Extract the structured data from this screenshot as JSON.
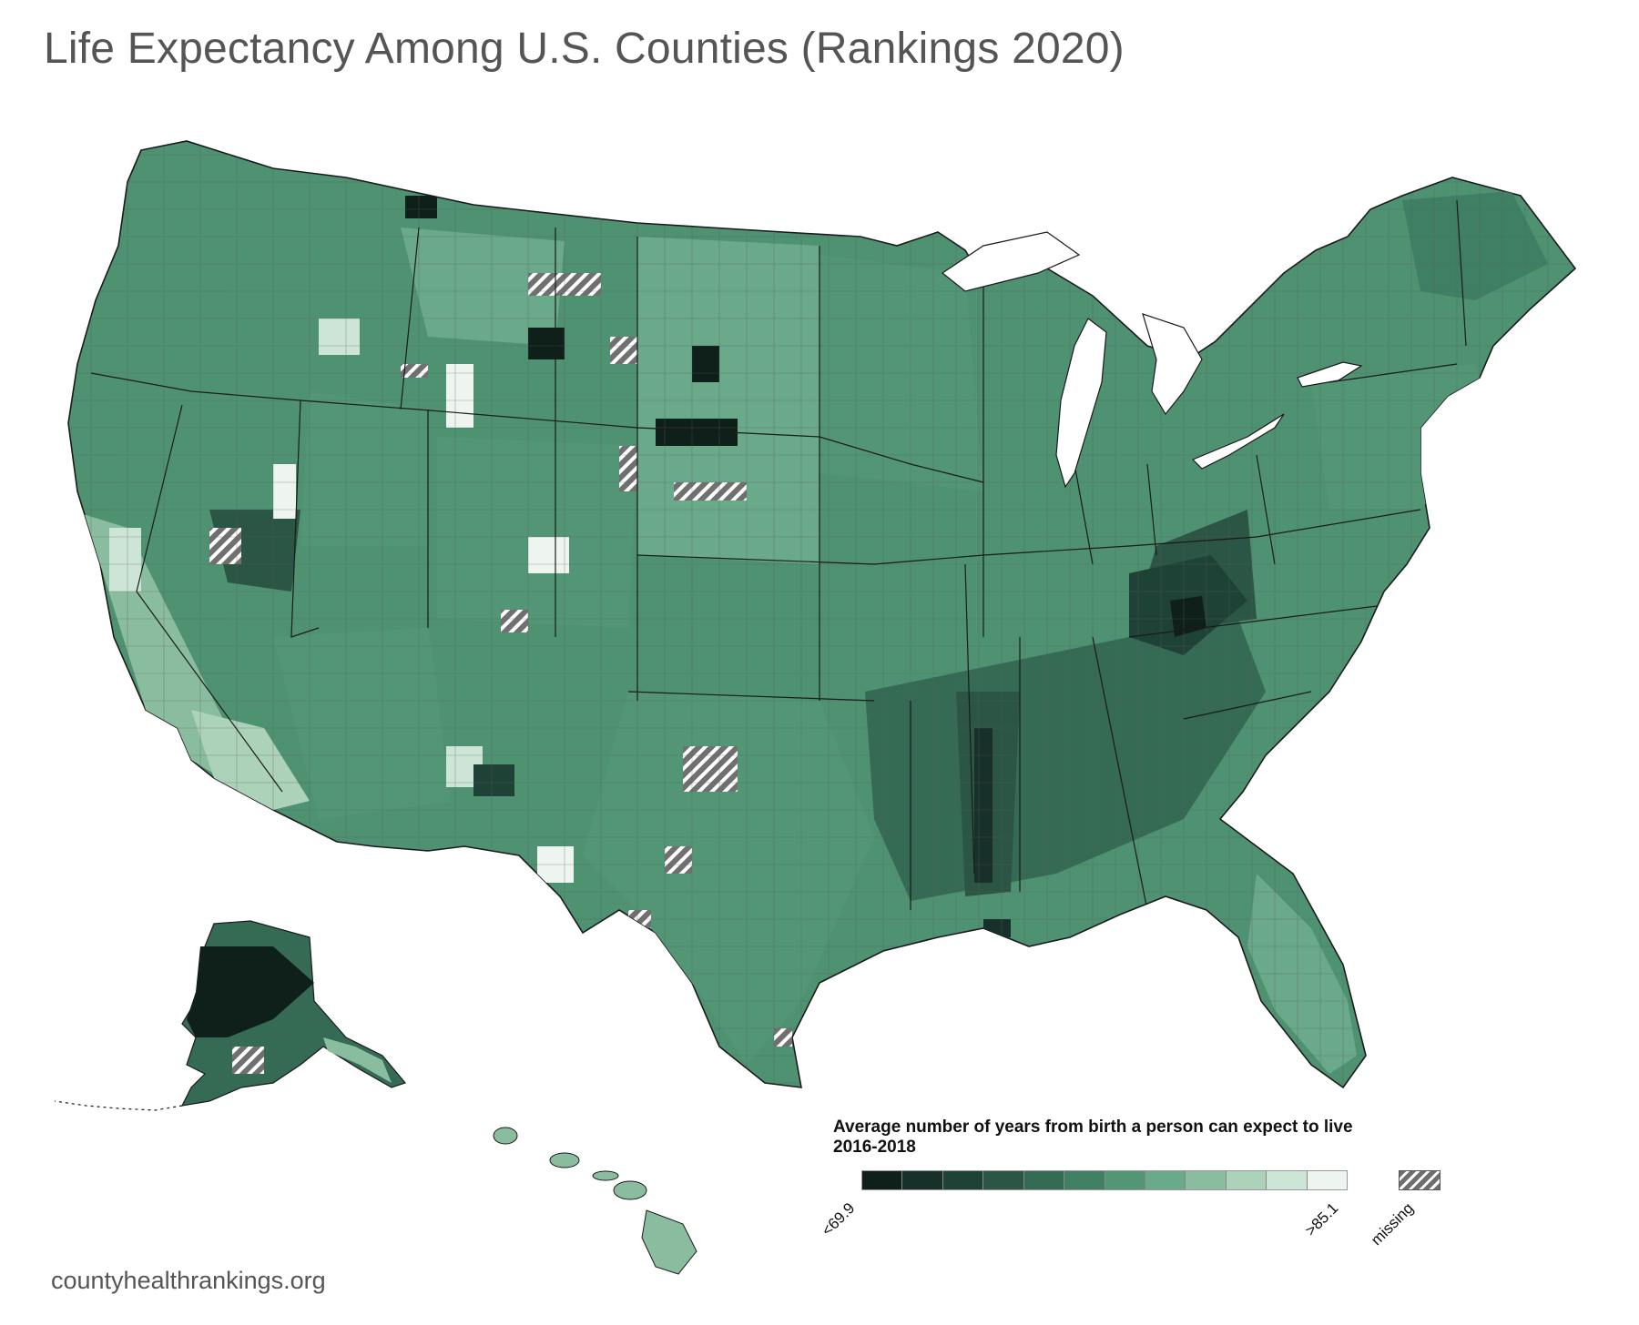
{
  "title": "Life Expectancy Among U.S. Counties (Rankings 2020)",
  "source": "countyhealthrankings.org",
  "legend": {
    "title_line1": "Average number of years from birth a person can expect to live",
    "title_line2": "2016-2018",
    "low_label": "<69.9",
    "high_label": ">85.1",
    "missing_label": "missing",
    "colors": [
      "#0f1f19",
      "#17302a",
      "#1f4236",
      "#2b5545",
      "#356a55",
      "#3f7f64",
      "#529676",
      "#6aa98a",
      "#8abd9f",
      "#acd2ba",
      "#cde5d6",
      "#eef5f1"
    ]
  },
  "colors": {
    "water": "#ffffff",
    "border": "#1a1a1a",
    "county_line": "#5f5f5f",
    "base_fill": "#4e9272"
  },
  "chart_data": {
    "type": "choropleth",
    "metric": "Life expectancy (years)",
    "period": "2016-2018",
    "range": [
      "<69.9",
      ">85.1"
    ],
    "bins": 12,
    "missing_category": "missing",
    "regions": [
      {
        "name": "Contiguous United States",
        "shade": "mid-green"
      },
      {
        "name": "Alaska",
        "shade": "mixed, dark in west"
      },
      {
        "name": "Hawaii",
        "shade": "light green"
      }
    ]
  }
}
